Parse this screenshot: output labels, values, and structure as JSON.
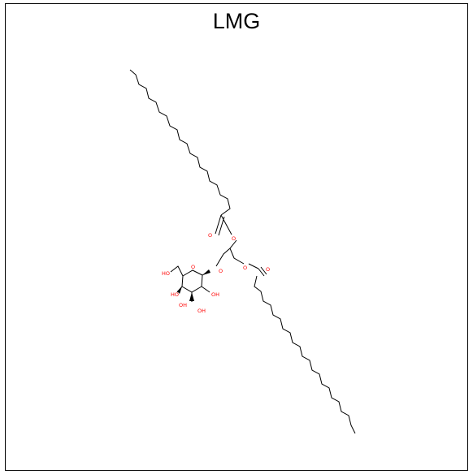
{
  "title": "LMG",
  "atoms": {
    "ester1_carbonyl_o": "O",
    "ester1_link_o": "O",
    "ester2_carbonyl_o": "O",
    "ester2_link_o": "O",
    "glycosidic_o": "O",
    "ring_o": "O",
    "oh_c6": "HO",
    "oh_c4": "HO",
    "oh_c3": "OH",
    "oh_c2": "OH",
    "oh_c2b": "OH"
  },
  "colors": {
    "bond": "#000000",
    "heteroatom": "#ff0000"
  }
}
